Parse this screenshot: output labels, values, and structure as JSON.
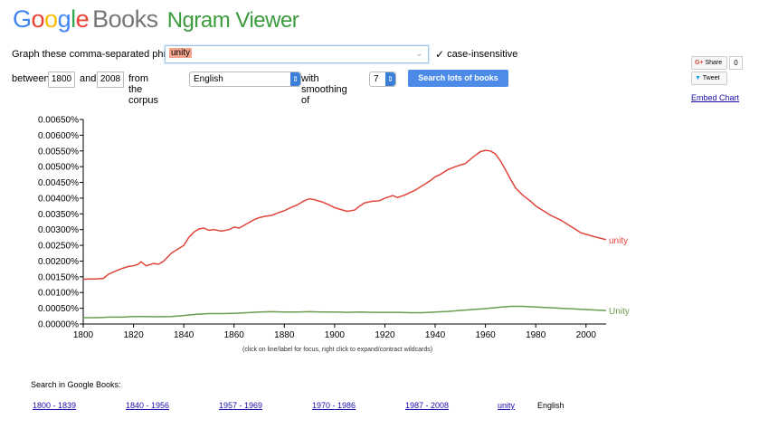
{
  "header": {
    "logo_google": [
      "G",
      "o",
      "o",
      "g",
      "l",
      "e"
    ],
    "logo_books": "Books",
    "logo_ngram": "Ngram Viewer"
  },
  "form": {
    "graph_label": "Graph these comma-separated phrases:",
    "phrase_value": "unity",
    "case_insensitive_checked": true,
    "case_insensitive_label": "case-insensitive",
    "between_label": "between",
    "year_start": "1800",
    "and_label": "and",
    "year_end": "2008",
    "corpus_label": "from the corpus",
    "corpus_value": "English",
    "smoothing_label": "with smoothing of",
    "smoothing_value": "7",
    "search_button": "Search lots of books"
  },
  "social": {
    "share_label": "Share",
    "share_count": "0",
    "tweet_label": "Tweet",
    "embed_label": "Embed Chart"
  },
  "chart_data": {
    "type": "line",
    "xlim": [
      1800,
      2008
    ],
    "ylim": [
      0,
      0.0065
    ],
    "x_ticks": [
      1800,
      1820,
      1840,
      1860,
      1880,
      1900,
      1920,
      1940,
      1960,
      1980,
      2000
    ],
    "y_ticks": [
      "0.00650%",
      "0.00600%",
      "0.00550%",
      "0.00500%",
      "0.00450%",
      "0.00400%",
      "0.00350%",
      "0.00300%",
      "0.00250%",
      "0.00200%",
      "0.00150%",
      "0.00100%",
      "0.00050%",
      "0.00000%"
    ],
    "y_tick_values": [
      0.0065,
      0.006,
      0.0055,
      0.005,
      0.0045,
      0.004,
      0.0035,
      0.003,
      0.0025,
      0.002,
      0.0015,
      0.001,
      0.0005,
      0
    ],
    "series": [
      {
        "name": "unity",
        "color": "#e0453a",
        "x": [
          1800,
          1802,
          1805,
          1808,
          1810,
          1812,
          1814,
          1816,
          1818,
          1820,
          1822,
          1823,
          1825,
          1828,
          1830,
          1832,
          1835,
          1838,
          1840,
          1842,
          1844,
          1846,
          1848,
          1850,
          1852,
          1855,
          1858,
          1860,
          1862,
          1865,
          1868,
          1870,
          1872,
          1875,
          1878,
          1880,
          1882,
          1885,
          1888,
          1890,
          1892,
          1895,
          1898,
          1900,
          1902,
          1905,
          1908,
          1910,
          1912,
          1915,
          1918,
          1920,
          1922,
          1923,
          1925,
          1928,
          1930,
          1932,
          1935,
          1938,
          1940,
          1942,
          1945,
          1948,
          1950,
          1952,
          1955,
          1958,
          1960,
          1962,
          1964,
          1966,
          1968,
          1970,
          1972,
          1975,
          1978,
          1980,
          1983,
          1986,
          1990,
          1994,
          1998,
          2000,
          2003,
          2006,
          2008
        ],
        "values": [
          0.00142,
          0.00143,
          0.00143,
          0.00145,
          0.00158,
          0.00165,
          0.00172,
          0.00178,
          0.00183,
          0.00185,
          0.0019,
          0.00198,
          0.00185,
          0.00192,
          0.0019,
          0.002,
          0.00225,
          0.0024,
          0.0025,
          0.00275,
          0.00292,
          0.00302,
          0.00305,
          0.00298,
          0.003,
          0.00295,
          0.003,
          0.00308,
          0.00305,
          0.00318,
          0.00332,
          0.00338,
          0.00342,
          0.00345,
          0.00355,
          0.0036,
          0.00368,
          0.00378,
          0.00392,
          0.00398,
          0.00395,
          0.00388,
          0.00378,
          0.0037,
          0.00365,
          0.00358,
          0.00362,
          0.00375,
          0.00385,
          0.0039,
          0.00392,
          0.004,
          0.00405,
          0.00408,
          0.00402,
          0.0041,
          0.00418,
          0.00425,
          0.0044,
          0.00455,
          0.00468,
          0.00475,
          0.0049,
          0.005,
          0.00505,
          0.0051,
          0.0053,
          0.00548,
          0.00552,
          0.0055,
          0.0054,
          0.00518,
          0.0049,
          0.0046,
          0.00432,
          0.00408,
          0.0039,
          0.00375,
          0.0036,
          0.00345,
          0.0033,
          0.0031,
          0.0029,
          0.00285,
          0.00278,
          0.00272,
          0.00268
        ]
      },
      {
        "name": "Unity",
        "color": "#6a9e50",
        "x": [
          1800,
          1805,
          1808,
          1810,
          1815,
          1820,
          1825,
          1830,
          1835,
          1840,
          1845,
          1850,
          1855,
          1860,
          1865,
          1870,
          1875,
          1880,
          1885,
          1890,
          1895,
          1900,
          1905,
          1910,
          1915,
          1920,
          1925,
          1930,
          1935,
          1940,
          1945,
          1950,
          1955,
          1960,
          1965,
          1970,
          1975,
          1980,
          1985,
          1990,
          1995,
          2000,
          2005,
          2008
        ],
        "values": [
          0.0002,
          0.0002,
          0.00021,
          0.00022,
          0.00022,
          0.00024,
          0.00024,
          0.00023,
          0.00024,
          0.00027,
          0.00031,
          0.00033,
          0.00033,
          0.00034,
          0.00036,
          0.00038,
          0.00039,
          0.00038,
          0.00038,
          0.00039,
          0.00038,
          0.00038,
          0.00037,
          0.00038,
          0.00037,
          0.00037,
          0.00037,
          0.00036,
          0.00036,
          0.00038,
          0.0004,
          0.00043,
          0.00046,
          0.00049,
          0.00053,
          0.00056,
          0.00056,
          0.00054,
          0.00052,
          0.0005,
          0.00048,
          0.00046,
          0.00044,
          0.00043
        ]
      }
    ]
  },
  "chart_hint": "(click on line/label for focus, right click to expand/contract wildcards)",
  "search_in": {
    "label": "Search in Google Books:",
    "links": [
      "1800 - 1839",
      "1840 - 1956",
      "1957 - 1969",
      "1970 - 1986",
      "1987 - 2008",
      "unity"
    ],
    "corpus": "English"
  }
}
